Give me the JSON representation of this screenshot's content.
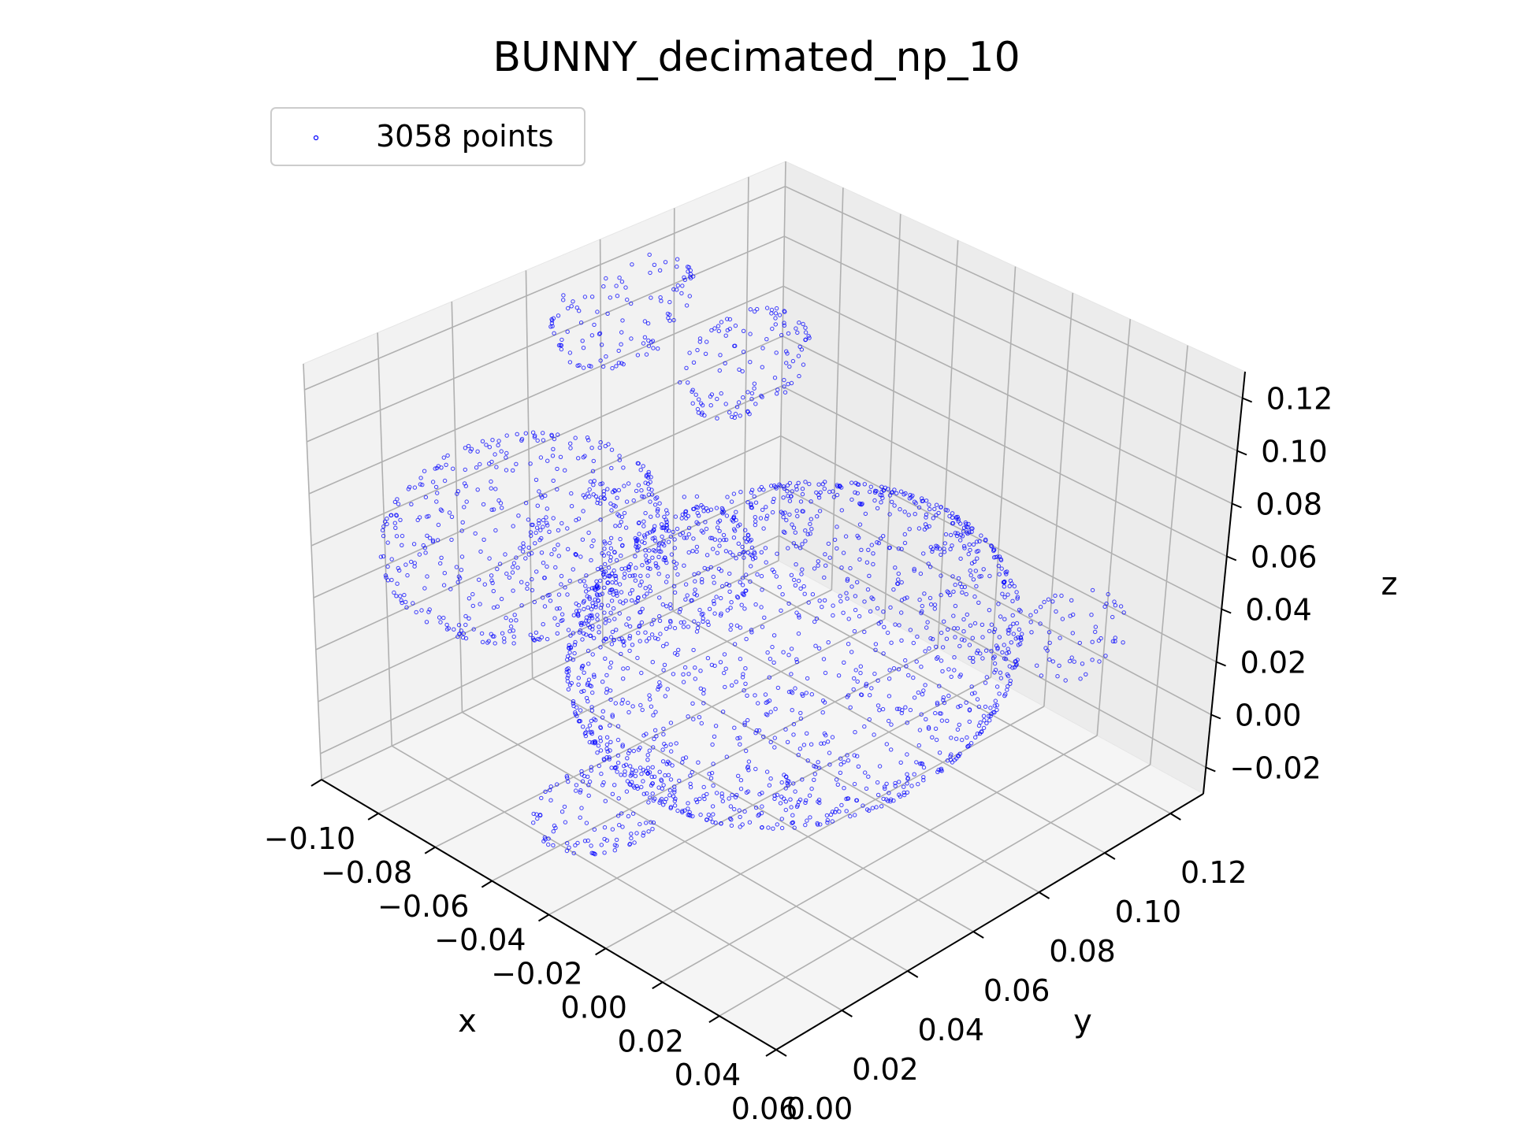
{
  "chart_data": {
    "type": "scatter",
    "title": "BUNNY_decimated_np_10",
    "xlabel": "x",
    "ylabel": "y",
    "zlabel": "z",
    "xlim": [
      -0.1,
      0.06
    ],
    "ylim": [
      0.0,
      0.13
    ],
    "zlim": [
      -0.03,
      0.13
    ],
    "x_ticks": [
      "−0.10",
      "−0.08",
      "−0.06",
      "−0.04",
      "−0.02",
      "0.00",
      "0.02",
      "0.04",
      "0.06"
    ],
    "y_ticks": [
      "0.00",
      "0.02",
      "0.04",
      "0.06",
      "0.08",
      "0.10",
      "0.12"
    ],
    "z_ticks": [
      "−0.02",
      "0.00",
      "0.02",
      "0.04",
      "0.06",
      "0.08",
      "0.10",
      "0.12"
    ],
    "grid": true,
    "legend": {
      "position": "top-left",
      "entries": [
        "3058 points"
      ]
    },
    "series": [
      {
        "name": "3058 points",
        "color": "#0000ff",
        "marker": "dot",
        "count": 3058
      }
    ]
  }
}
